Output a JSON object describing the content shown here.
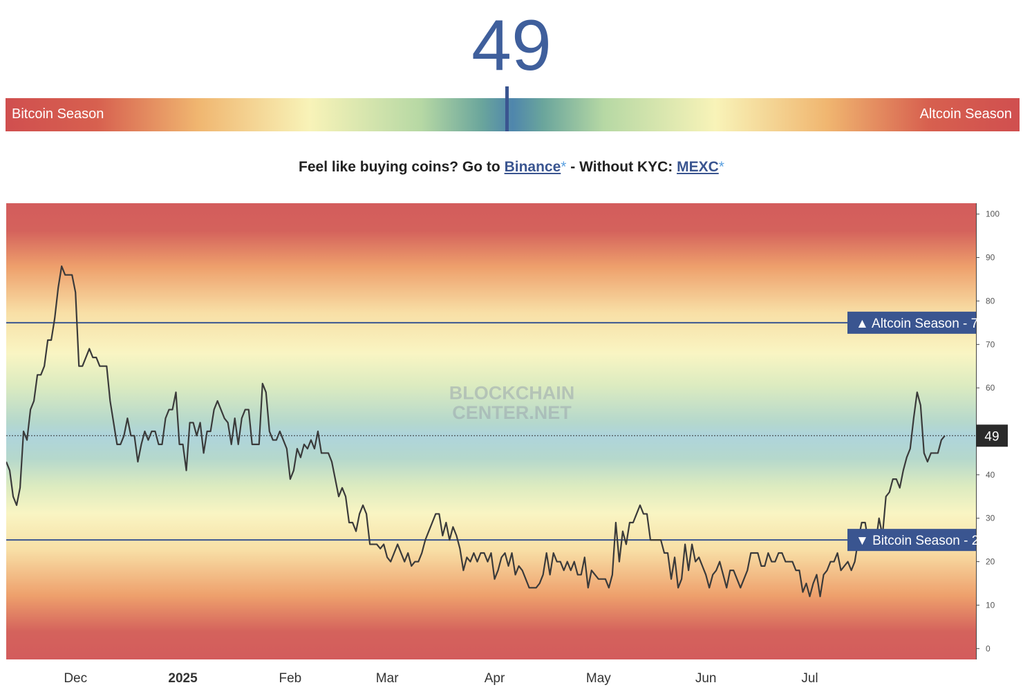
{
  "indicator": {
    "value": "49",
    "gauge_left_label": "Bitcoin Season",
    "gauge_right_label": "Altcoin Season",
    "value_fraction": 0.49
  },
  "promo": {
    "text_before": "Feel like buying coins? Go to ",
    "link1": "Binance",
    "star1": "*",
    "text_middle": " - Without KYC: ",
    "link2": "MEXC",
    "star2": "*"
  },
  "colors": {
    "accent": "#3f5f9c",
    "line": "#3a3a3a",
    "threshold": "#3a5590",
    "current_tag": "#2a2a2a"
  },
  "chart_data": {
    "type": "line",
    "watermark": [
      "BLOCKCHAIN",
      "CENTER.NET"
    ],
    "y_ticks": [
      0,
      10,
      20,
      30,
      40,
      50,
      60,
      70,
      80,
      90,
      100
    ],
    "ylim": [
      -2.5,
      102.5
    ],
    "x_labels": [
      {
        "label": "Dec",
        "date": "2024-12-01"
      },
      {
        "label": "2025",
        "date": "2025-01-01",
        "bold": true
      },
      {
        "label": "Feb",
        "date": "2025-02-01"
      },
      {
        "label": "Mar",
        "date": "2025-03-01"
      },
      {
        "label": "Apr",
        "date": "2025-04-01"
      },
      {
        "label": "May",
        "date": "2025-05-01"
      },
      {
        "label": "Jun",
        "date": "2025-06-01"
      },
      {
        "label": "Jul",
        "date": "2025-07-01"
      }
    ],
    "xlim": [
      "2024-11-11",
      "2025-08-18"
    ],
    "thresholds": [
      {
        "label": "Altcoin Season",
        "value": 75,
        "arrow": "▲"
      },
      {
        "label": "Bitcoin Season",
        "value": 25,
        "arrow": "▼"
      }
    ],
    "current": {
      "value": 49,
      "label": "49"
    },
    "series": [
      {
        "start_date": "2024-11-11",
        "step_days": 1,
        "values": [
          43,
          41,
          35,
          33,
          37,
          50,
          48,
          55,
          57,
          63,
          63,
          65,
          71,
          71,
          76,
          83,
          88,
          86,
          86,
          86,
          82,
          65,
          65,
          67,
          69,
          67,
          67,
          65,
          65,
          65,
          57,
          52,
          47,
          47,
          49,
          53,
          49,
          49,
          43,
          47,
          50,
          48,
          50,
          50,
          47,
          47,
          53,
          55,
          55,
          59,
          47,
          47,
          41,
          52,
          52,
          49,
          52,
          45,
          50,
          50,
          55,
          57,
          55,
          53,
          52,
          47,
          53,
          47,
          53,
          55,
          55,
          47,
          47,
          47,
          61,
          59,
          50,
          48,
          48,
          50,
          48,
          46,
          39,
          41,
          46,
          44,
          47,
          46,
          48,
          46,
          50,
          45,
          45,
          45,
          43,
          39,
          35,
          37,
          35,
          29,
          29,
          27,
          31,
          33,
          31,
          24,
          24,
          24,
          23,
          24,
          21,
          20,
          22,
          24,
          22,
          20,
          22,
          19,
          20,
          20,
          22,
          25,
          27,
          29,
          31,
          31,
          26,
          29,
          25,
          28,
          26,
          23,
          18,
          21,
          20,
          22,
          20,
          22,
          22,
          20,
          22,
          16,
          18,
          21,
          22,
          19,
          22,
          17,
          19,
          18,
          16,
          14,
          14,
          14,
          15,
          17,
          22,
          17,
          22,
          20,
          20,
          18,
          20,
          18,
          20,
          17,
          17,
          21,
          14,
          18,
          17,
          16,
          16,
          16,
          14,
          17,
          29,
          20,
          27,
          24,
          29,
          29,
          31,
          33,
          31,
          31,
          25,
          25,
          25,
          25,
          22,
          22,
          16,
          21,
          14,
          16,
          24,
          18,
          24,
          20,
          21,
          19,
          17,
          14,
          17,
          18,
          20,
          17,
          14,
          18,
          18,
          16,
          14,
          16,
          18,
          22,
          22,
          22,
          19,
          19,
          22,
          20,
          20,
          22,
          22,
          20,
          20,
          20,
          18,
          18,
          13,
          15,
          12,
          15,
          17,
          12,
          17,
          18,
          20,
          20,
          22,
          18,
          19,
          20,
          18,
          20,
          25,
          29,
          29,
          24,
          27,
          24,
          30,
          26,
          35,
          36,
          39,
          39,
          37,
          41,
          44,
          46,
          53,
          59,
          56,
          45,
          43,
          45,
          45,
          45,
          48,
          49
        ]
      }
    ]
  }
}
